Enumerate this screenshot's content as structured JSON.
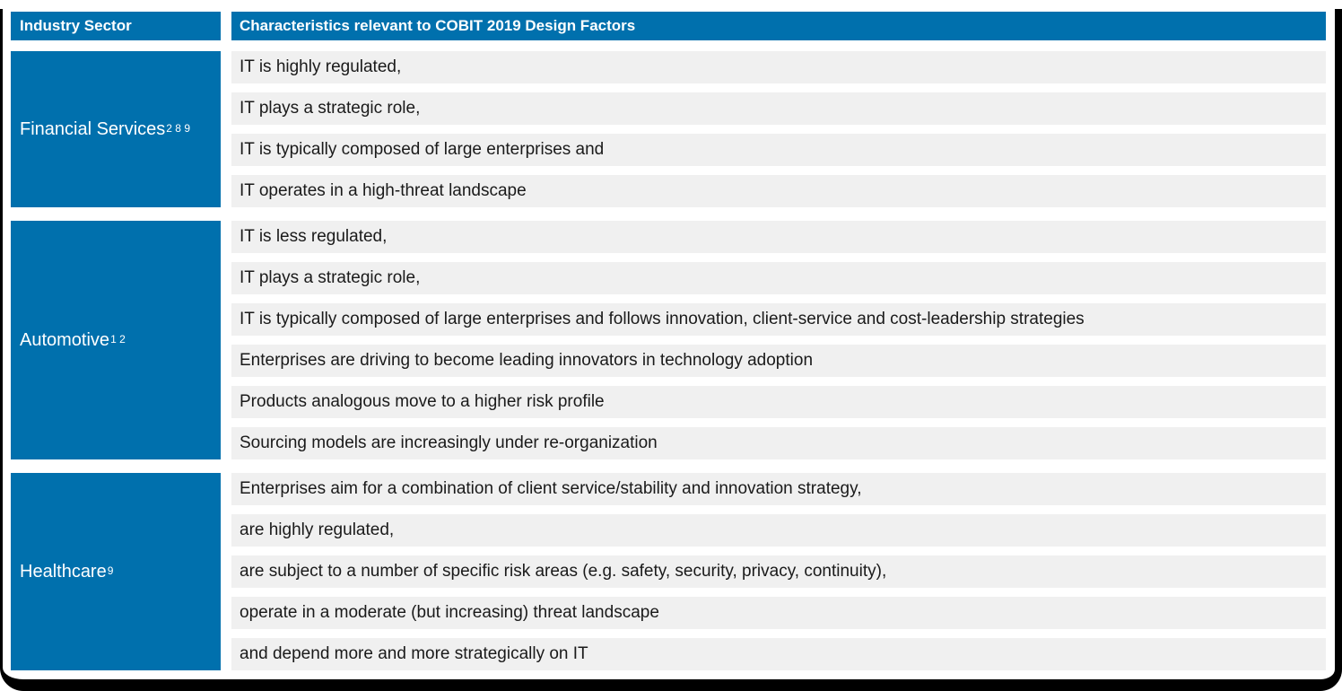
{
  "table": {
    "header": {
      "industry_sector": "Industry Sector",
      "characteristics": "Characteristics relevant to COBIT 2019 Design Factors"
    },
    "sections": [
      {
        "sector": "Financial Services",
        "footnote_refs": "2 8 9",
        "characteristics": [
          "IT is highly regulated,",
          "IT plays a strategic role,",
          "IT is typically composed of large enterprises and",
          "IT operates in a high-threat landscape"
        ]
      },
      {
        "sector": "Automotive",
        "footnote_refs": "1 2",
        "characteristics": [
          "IT is less regulated,",
          "IT plays a strategic role,",
          "IT is typically composed of large enterprises and follows innovation, client-service and cost-leadership strategies",
          "Enterprises are driving to become leading innovators in technology adoption",
          "Products analogous move to a higher risk profile",
          "Sourcing models are increasingly under re-organization"
        ]
      },
      {
        "sector": "Healthcare",
        "footnote_refs": "9",
        "characteristics": [
          "Enterprises aim for a combination of client service/stability and innovation strategy,",
          "are highly regulated,",
          "are subject to a number of specific risk areas (e.g. safety, security, privacy, continuity),",
          "operate in a moderate (but increasing) threat landscape",
          "and depend more and more strategically on IT"
        ]
      }
    ],
    "colors": {
      "header_blue": "#0070AD",
      "row_gray": "#F0F0F0",
      "text_dark": "#1A1A1A",
      "frame_black": "#000000",
      "header_text": "#FFFFFF"
    }
  }
}
